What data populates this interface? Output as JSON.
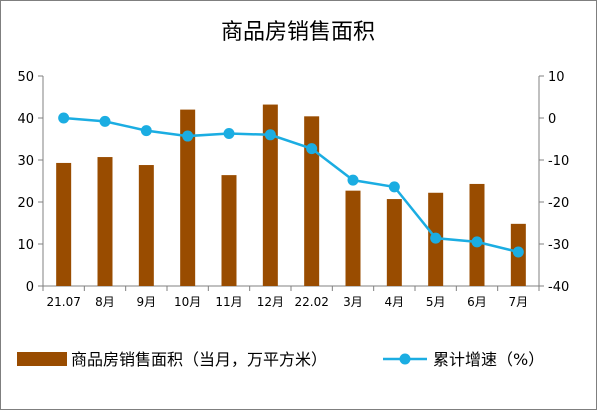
{
  "chart_data": {
    "type": "bar+line",
    "title": "商品房销售面积",
    "categories": [
      "21.07",
      "8月",
      "9月",
      "10月",
      "11月",
      "12月",
      "22.02",
      "3月",
      "4月",
      "5月",
      "6月",
      "7月"
    ],
    "series": [
      {
        "name": "商品房销售面积（当月，万平方米）",
        "type": "bar",
        "axis": "left",
        "color": "#994C00",
        "values": [
          29.3,
          30.7,
          28.8,
          42.0,
          26.4,
          43.2,
          40.4,
          22.7,
          20.7,
          22.2,
          24.3,
          14.8
        ]
      },
      {
        "name": "累计增速（%）",
        "type": "line",
        "axis": "right",
        "color": "#1BADE2",
        "values": [
          0.0,
          -0.8,
          -3.0,
          -4.3,
          -3.7,
          -4.0,
          -7.3,
          -14.8,
          -16.4,
          -28.6,
          -29.5,
          -31.9
        ]
      }
    ],
    "y_left": {
      "ylim": [
        0,
        50
      ],
      "ticks": [
        0,
        10,
        20,
        30,
        40,
        50
      ]
    },
    "y_right": {
      "ylim": [
        -40,
        10
      ],
      "ticks": [
        -40,
        -30,
        -20,
        -10,
        0,
        10
      ]
    },
    "grid": false,
    "legend": "bottom"
  }
}
